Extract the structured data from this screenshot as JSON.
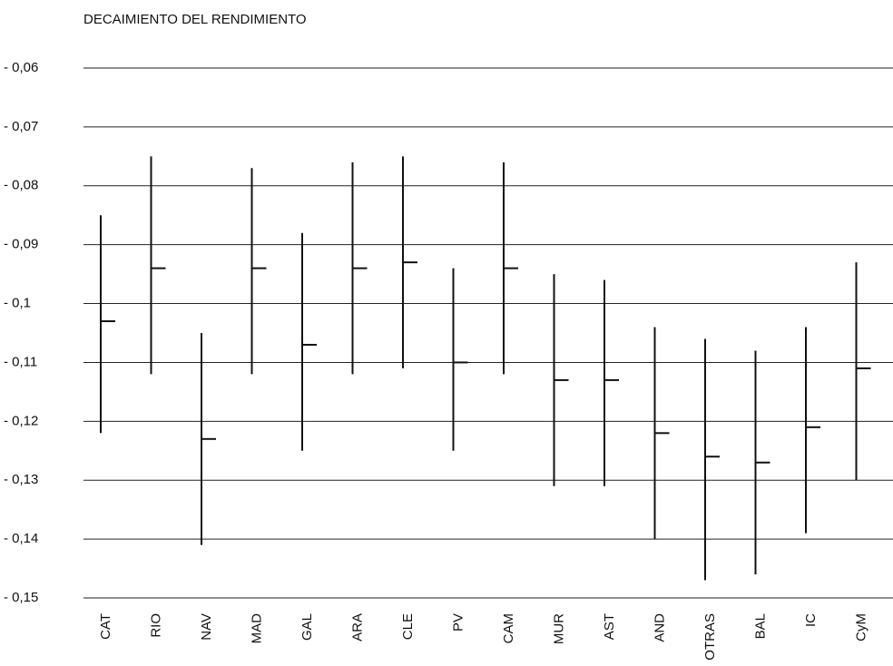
{
  "chart_data": {
    "type": "range",
    "title": "DECAIMIENTO DEL RENDIMIENTO",
    "categories": [
      "CAT",
      "RIO",
      "NAV",
      "MAD",
      "GAL",
      "ARA",
      "CLE",
      "PV",
      "CAM",
      "MUR",
      "AST",
      "AND",
      "OTRAS",
      "BAL",
      "IC",
      "CyM"
    ],
    "high": [
      -0.085,
      -0.075,
      -0.105,
      -0.077,
      -0.088,
      -0.076,
      -0.075,
      -0.094,
      -0.076,
      -0.095,
      -0.096,
      -0.104,
      -0.106,
      -0.108,
      -0.104,
      -0.093
    ],
    "low": [
      -0.122,
      -0.112,
      -0.141,
      -0.112,
      -0.125,
      -0.112,
      -0.111,
      -0.125,
      -0.112,
      -0.131,
      -0.131,
      -0.14,
      -0.147,
      -0.146,
      -0.139,
      -0.13
    ],
    "mid": [
      -0.103,
      -0.094,
      -0.123,
      -0.094,
      -0.107,
      -0.094,
      -0.093,
      -0.11,
      -0.094,
      -0.113,
      -0.113,
      -0.122,
      -0.126,
      -0.127,
      -0.121,
      -0.111
    ],
    "color": "#111111",
    "ylim": [
      -0.15,
      -0.06
    ],
    "yticks": [
      {
        "value": -0.06,
        "label": "- 0,06"
      },
      {
        "value": -0.07,
        "label": "- 0,07"
      },
      {
        "value": -0.08,
        "label": "- 0,08"
      },
      {
        "value": -0.09,
        "label": "- 0,09"
      },
      {
        "value": -0.1,
        "label": "- 0,1"
      },
      {
        "value": -0.11,
        "label": "- 0,11"
      },
      {
        "value": -0.12,
        "label": "- 0,12"
      },
      {
        "value": -0.13,
        "label": "- 0,13"
      },
      {
        "value": -0.14,
        "label": "- 0,14"
      },
      {
        "value": -0.15,
        "label": "- 0,15"
      }
    ],
    "grid": true
  }
}
